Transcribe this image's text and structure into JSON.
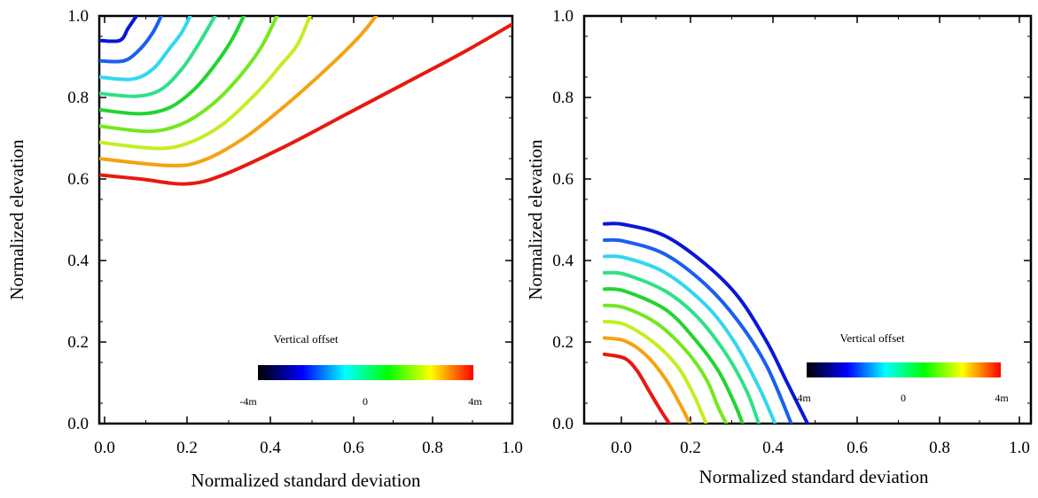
{
  "colorbar": {
    "title": "Vertical offset",
    "labels": [
      "-4m",
      "0",
      "4m"
    ],
    "stops": [
      "#000000",
      "#0000ff",
      "#00ffff",
      "#00ff00",
      "#ffff00",
      "#ff0000"
    ]
  },
  "series_colors": [
    "#0a0a4a",
    "#0a17d8",
    "#1a5ff0",
    "#33d6f0",
    "#2fe08a",
    "#22d430",
    "#72e81e",
    "#c4ee22",
    "#f4a214",
    "#e8190f"
  ],
  "chart_data": [
    {
      "type": "line",
      "xlabel": "Normalized standard deviation",
      "ylabel": "Normalized elevation",
      "xlim": [
        0.0,
        1.0
      ],
      "ylim": [
        0.0,
        1.0
      ],
      "xticks": [
        "0.0",
        "0.2",
        "0.4",
        "0.6",
        "0.8",
        "1.0"
      ],
      "yticks": [
        "0.0",
        "0.2",
        "0.4",
        "0.6",
        "0.8",
        "1.0"
      ],
      "series": [
        {
          "points": [
            [
              0.0,
              0.94
            ],
            [
              0.05,
              0.94
            ],
            [
              0.07,
              0.97
            ],
            [
              0.09,
              1.0
            ]
          ]
        },
        {
          "points": [
            [
              0.0,
              0.89
            ],
            [
              0.06,
              0.89
            ],
            [
              0.1,
              0.92
            ],
            [
              0.13,
              0.96
            ],
            [
              0.15,
              1.0
            ]
          ]
        },
        {
          "points": [
            [
              0.0,
              0.85
            ],
            [
              0.08,
              0.845
            ],
            [
              0.13,
              0.87
            ],
            [
              0.17,
              0.92
            ],
            [
              0.2,
              0.96
            ],
            [
              0.22,
              1.0
            ]
          ]
        },
        {
          "points": [
            [
              0.0,
              0.81
            ],
            [
              0.09,
              0.803
            ],
            [
              0.15,
              0.82
            ],
            [
              0.2,
              0.87
            ],
            [
              0.24,
              0.93
            ],
            [
              0.28,
              1.0
            ]
          ]
        },
        {
          "points": [
            [
              0.0,
              0.77
            ],
            [
              0.1,
              0.76
            ],
            [
              0.17,
              0.775
            ],
            [
              0.23,
              0.82
            ],
            [
              0.28,
              0.88
            ],
            [
              0.32,
              0.94
            ],
            [
              0.35,
              1.0
            ]
          ]
        },
        {
          "points": [
            [
              0.0,
              0.73
            ],
            [
              0.12,
              0.717
            ],
            [
              0.2,
              0.735
            ],
            [
              0.27,
              0.78
            ],
            [
              0.33,
              0.84
            ],
            [
              0.39,
              0.92
            ],
            [
              0.43,
              1.0
            ]
          ]
        },
        {
          "points": [
            [
              0.0,
              0.69
            ],
            [
              0.14,
              0.675
            ],
            [
              0.22,
              0.69
            ],
            [
              0.3,
              0.735
            ],
            [
              0.38,
              0.81
            ],
            [
              0.44,
              0.88
            ],
            [
              0.48,
              0.93
            ],
            [
              0.51,
              1.0
            ]
          ]
        },
        {
          "points": [
            [
              0.0,
              0.65
            ],
            [
              0.17,
              0.633
            ],
            [
              0.25,
              0.645
            ],
            [
              0.35,
              0.7
            ],
            [
              0.45,
              0.78
            ],
            [
              0.55,
              0.87
            ],
            [
              0.63,
              0.95
            ],
            [
              0.67,
              1.0
            ]
          ]
        },
        {
          "points": [
            [
              0.0,
              0.61
            ],
            [
              0.1,
              0.6
            ],
            [
              0.21,
              0.588
            ],
            [
              0.3,
              0.61
            ],
            [
              0.45,
              0.68
            ],
            [
              0.6,
              0.76
            ],
            [
              0.75,
              0.84
            ],
            [
              0.88,
              0.91
            ],
            [
              1.0,
              0.98
            ]
          ]
        }
      ]
    },
    {
      "type": "line",
      "xlabel": "Normalized standard deviation",
      "ylabel": "Normalized elevation",
      "xlim": [
        -0.1,
        1.0
      ],
      "ylim": [
        0.0,
        1.0
      ],
      "xticks": [
        "0.0",
        "0.2",
        "0.4",
        "0.6",
        "0.8",
        "1.0"
      ],
      "yticks": [
        "0.0",
        "0.2",
        "0.4",
        "0.6",
        "0.8",
        "1.0"
      ],
      "series": [
        {
          "points": [
            [
              -0.05,
              0.49
            ],
            [
              0.0,
              0.488
            ],
            [
              0.1,
              0.46
            ],
            [
              0.2,
              0.39
            ],
            [
              0.28,
              0.31
            ],
            [
              0.35,
              0.2
            ],
            [
              0.4,
              0.1
            ],
            [
              0.45,
              0.0
            ]
          ]
        },
        {
          "points": [
            [
              -0.05,
              0.45
            ],
            [
              0.0,
              0.447
            ],
            [
              0.1,
              0.415
            ],
            [
              0.2,
              0.34
            ],
            [
              0.28,
              0.25
            ],
            [
              0.35,
              0.14
            ],
            [
              0.41,
              0.0
            ]
          ]
        },
        {
          "points": [
            [
              -0.05,
              0.41
            ],
            [
              0.0,
              0.407
            ],
            [
              0.1,
              0.37
            ],
            [
              0.2,
              0.29
            ],
            [
              0.27,
              0.2
            ],
            [
              0.33,
              0.09
            ],
            [
              0.37,
              0.0
            ]
          ]
        },
        {
          "points": [
            [
              -0.05,
              0.37
            ],
            [
              0.0,
              0.366
            ],
            [
              0.1,
              0.325
            ],
            [
              0.18,
              0.26
            ],
            [
              0.25,
              0.17
            ],
            [
              0.3,
              0.08
            ],
            [
              0.33,
              0.0
            ]
          ]
        },
        {
          "points": [
            [
              -0.05,
              0.33
            ],
            [
              0.0,
              0.325
            ],
            [
              0.1,
              0.28
            ],
            [
              0.17,
              0.21
            ],
            [
              0.23,
              0.13
            ],
            [
              0.27,
              0.05
            ],
            [
              0.29,
              0.0
            ]
          ]
        },
        {
          "points": [
            [
              -0.05,
              0.29
            ],
            [
              0.0,
              0.284
            ],
            [
              0.08,
              0.245
            ],
            [
              0.15,
              0.18
            ],
            [
              0.2,
              0.11
            ],
            [
              0.23,
              0.04
            ],
            [
              0.25,
              0.0
            ]
          ]
        },
        {
          "points": [
            [
              -0.05,
              0.25
            ],
            [
              0.0,
              0.243
            ],
            [
              0.07,
              0.2
            ],
            [
              0.13,
              0.14
            ],
            [
              0.17,
              0.07
            ],
            [
              0.2,
              0.0
            ]
          ]
        },
        {
          "points": [
            [
              -0.05,
              0.21
            ],
            [
              0.0,
              0.203
            ],
            [
              0.05,
              0.17
            ],
            [
              0.1,
              0.11
            ],
            [
              0.14,
              0.04
            ],
            [
              0.16,
              0.0
            ]
          ]
        },
        {
          "points": [
            [
              -0.05,
              0.17
            ],
            [
              0.0,
              0.16
            ],
            [
              0.03,
              0.13
            ],
            [
              0.06,
              0.08
            ],
            [
              0.09,
              0.03
            ],
            [
              0.11,
              0.0
            ]
          ]
        }
      ]
    }
  ]
}
